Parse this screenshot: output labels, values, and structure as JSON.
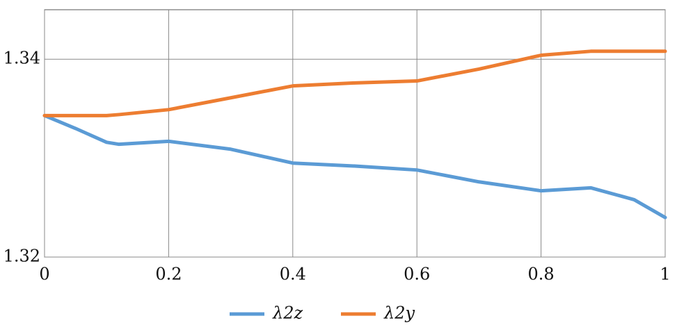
{
  "chart_data": {
    "type": "line",
    "x": [
      0,
      0.05,
      0.1,
      0.12,
      0.2,
      0.3,
      0.4,
      0.5,
      0.6,
      0.7,
      0.8,
      0.88,
      0.95,
      1
    ],
    "series": [
      {
        "name": "λ2z",
        "color": "#5b9bd5",
        "values": [
          1.3343,
          1.333,
          1.3316,
          1.3314,
          1.3317,
          1.3309,
          1.3295,
          1.3292,
          1.3288,
          1.3276,
          1.3267,
          1.327,
          1.3258,
          1.324
        ]
      },
      {
        "name": "λ2y",
        "color": "#ed7d31",
        "values": [
          1.3343,
          1.3343,
          1.3343,
          1.3344,
          1.3349,
          1.3361,
          1.3373,
          1.3376,
          1.3378,
          1.339,
          1.3404,
          1.3408,
          1.3408,
          1.3408
        ]
      }
    ],
    "xlim": [
      0,
      1
    ],
    "xticks": [
      0,
      0.2,
      0.4,
      0.6,
      0.8,
      1
    ],
    "ylim": [
      1.32,
      1.345
    ],
    "yticks": [
      1.32,
      1.34
    ],
    "grid": true,
    "legend": "bottom"
  }
}
